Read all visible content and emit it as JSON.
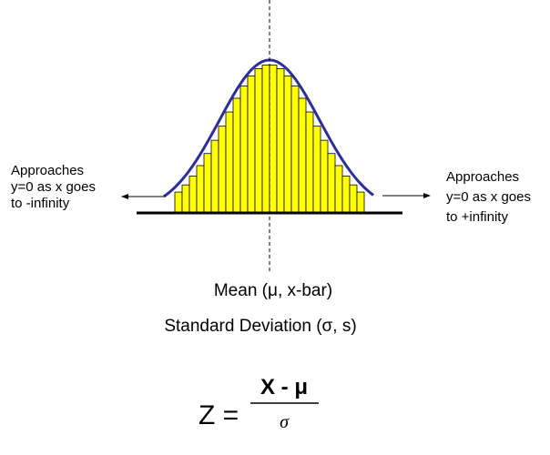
{
  "left_note": {
    "lines": [
      "Approaches",
      "y=0 as x goes",
      "to -infinity"
    ]
  },
  "right_note": {
    "lines": [
      "Approaches",
      "y=0 as x goes",
      "to +infinity"
    ]
  },
  "mean_label": "Mean (μ, x-bar)",
  "sd_label": "Standard Deviation (σ, s)",
  "formula": {
    "lhs": "Z =",
    "numerator": "X - μ",
    "denominator": "σ"
  }
}
